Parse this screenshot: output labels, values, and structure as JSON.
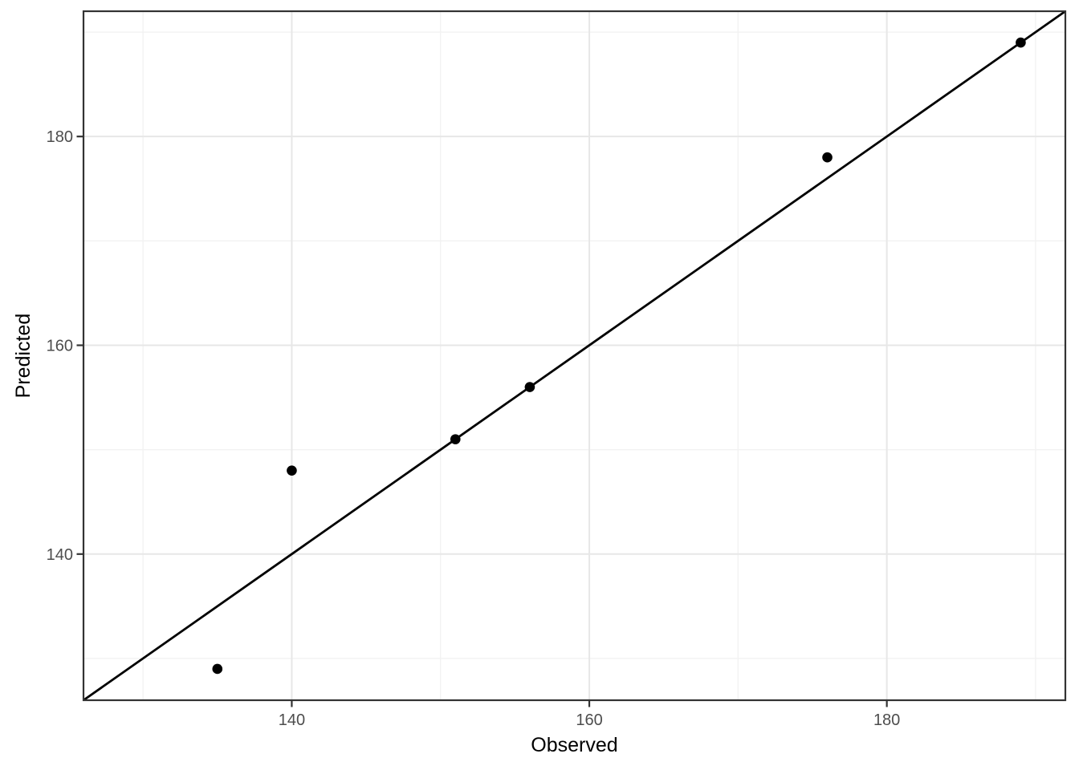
{
  "chart_data": {
    "type": "scatter",
    "title": "",
    "xlabel": "Observed",
    "ylabel": "Predicted",
    "xlim": [
      126,
      192
    ],
    "ylim": [
      126,
      192
    ],
    "x_ticks": [
      140,
      160,
      180
    ],
    "y_ticks": [
      140,
      160,
      180
    ],
    "x_minor_gridlines": [
      130,
      150,
      170,
      190
    ],
    "y_minor_gridlines": [
      130,
      150,
      170,
      190
    ],
    "grid": true,
    "legend_position": "none",
    "points": [
      {
        "observed": 135,
        "predicted": 129
      },
      {
        "observed": 140,
        "predicted": 148
      },
      {
        "observed": 151,
        "predicted": 151
      },
      {
        "observed": 156,
        "predicted": 156
      },
      {
        "observed": 176,
        "predicted": 178
      },
      {
        "observed": 189,
        "predicted": 189
      }
    ],
    "reference_line": {
      "kind": "identity",
      "slope": 1,
      "intercept": 0
    },
    "colors": {
      "background": "#ffffff",
      "panel_background": "#ffffff",
      "panel_border": "#333333",
      "grid_major": "#e7e7e7",
      "grid_minor": "#f2f2f2",
      "tick_mark": "#333333",
      "tick_label": "#4d4d4d",
      "axis_title": "#000000",
      "point": "#000000",
      "reference_line_color": "#000000"
    }
  }
}
